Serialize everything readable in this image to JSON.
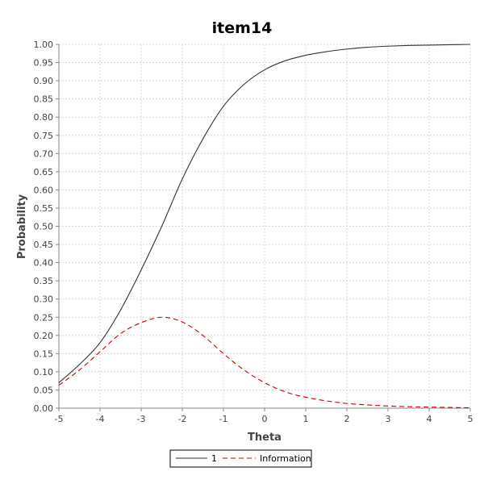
{
  "chart_data": {
    "type": "line",
    "title": "item14",
    "xlabel": "Theta",
    "ylabel": "Probability",
    "xlim": [
      -5,
      5
    ],
    "ylim": [
      0,
      1
    ],
    "x_ticks": [
      "-5",
      "-4",
      "-3",
      "-2",
      "-1",
      "0",
      "1",
      "2",
      "3",
      "4",
      "5"
    ],
    "y_ticks": [
      "0.00",
      "0.05",
      "0.10",
      "0.15",
      "0.20",
      "0.25",
      "0.30",
      "0.35",
      "0.40",
      "0.45",
      "0.50",
      "0.55",
      "0.60",
      "0.65",
      "0.70",
      "0.75",
      "0.80",
      "0.85",
      "0.90",
      "0.95",
      "1.00"
    ],
    "grid": true,
    "legend_position": "bottom",
    "x": [
      -5.0,
      -4.5,
      -4.0,
      -3.5,
      -3.0,
      -2.5,
      -2.0,
      -1.5,
      -1.0,
      -0.5,
      0.0,
      0.5,
      1.0,
      1.5,
      2.0,
      2.5,
      3.0,
      3.5,
      4.0,
      4.5,
      5.0
    ],
    "series": [
      {
        "name": "1",
        "color": "#333333",
        "style": "solid",
        "values": [
          0.07,
          0.12,
          0.18,
          0.27,
          0.38,
          0.5,
          0.63,
          0.74,
          0.83,
          0.89,
          0.93,
          0.955,
          0.97,
          0.98,
          0.987,
          0.992,
          0.995,
          0.997,
          0.998,
          0.999,
          1.0
        ]
      },
      {
        "name": "Information",
        "color": "#cc0000",
        "style": "dashed",
        "values": [
          0.063,
          0.105,
          0.155,
          0.205,
          0.235,
          0.25,
          0.237,
          0.2,
          0.15,
          0.105,
          0.07,
          0.045,
          0.03,
          0.02,
          0.013,
          0.009,
          0.006,
          0.004,
          0.003,
          0.002,
          0.001
        ]
      }
    ]
  }
}
